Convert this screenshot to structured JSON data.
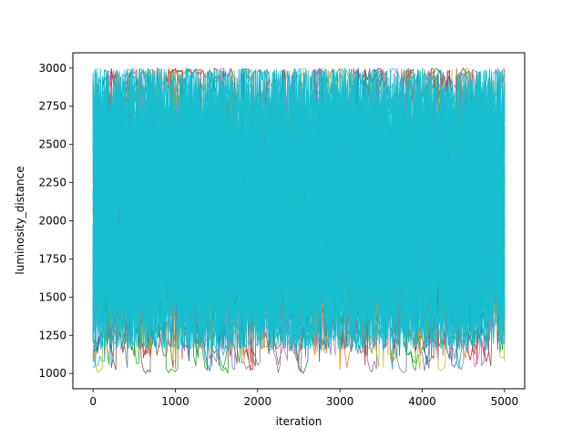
{
  "chart_data": {
    "type": "line",
    "title": "",
    "xlabel": "iteration",
    "ylabel": "luminosity_distance",
    "xlim": [
      -245,
      5245
    ],
    "ylim": [
      900,
      3100
    ],
    "xticks": [
      0,
      1000,
      2000,
      3000,
      4000,
      5000
    ],
    "yticks": [
      1000,
      1250,
      1500,
      1750,
      2000,
      2250,
      2500,
      2750,
      3000
    ],
    "xtick_labels": [
      "0",
      "1000",
      "2000",
      "3000",
      "4000",
      "5000"
    ],
    "ytick_labels": [
      "1000",
      "1250",
      "1500",
      "1750",
      "2000",
      "2250",
      "2500",
      "2750",
      "3000"
    ],
    "grid": false,
    "legend": "none",
    "series_count": 100,
    "iterations": 5000,
    "value_range": [
      1000,
      3000
    ],
    "palette": [
      "#1f77b4",
      "#ff7f0e",
      "#2ca02c",
      "#d62728",
      "#9467bd",
      "#8c564b",
      "#e377c2",
      "#7f7f7f",
      "#bcbd22",
      "#17becf"
    ]
  }
}
